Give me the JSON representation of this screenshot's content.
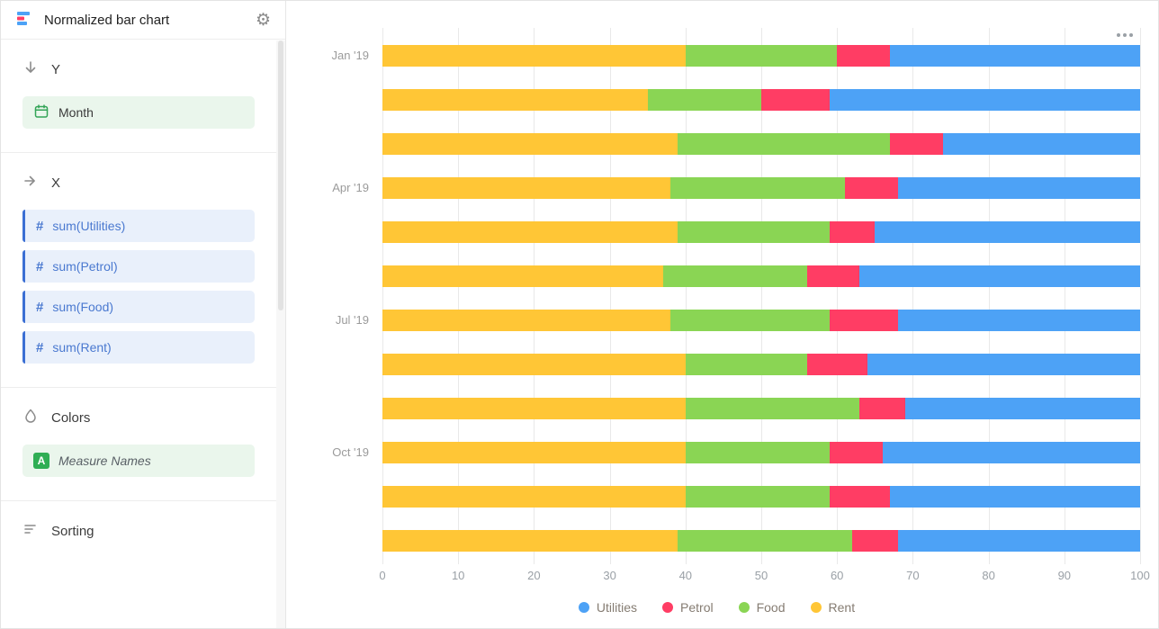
{
  "sidebar": {
    "title": "Normalized bar chart",
    "sections": {
      "y": {
        "label": "Y",
        "fields": [
          {
            "label": "Month"
          }
        ]
      },
      "x": {
        "label": "X",
        "fields": [
          {
            "label": "sum(Utilities)"
          },
          {
            "label": "sum(Petrol)"
          },
          {
            "label": "sum(Food)"
          },
          {
            "label": "sum(Rent)"
          }
        ]
      },
      "colors": {
        "label": "Colors",
        "fields": [
          {
            "label": "Measure Names"
          }
        ]
      },
      "sorting": {
        "label": "Sorting"
      }
    }
  },
  "palette": {
    "blue": "#4DA2F6",
    "red": "#FF3D64",
    "green": "#8AD554",
    "yellow": "#FFC636"
  },
  "chart_data": {
    "type": "bar",
    "orientation": "horizontal",
    "stacked": true,
    "normalized": true,
    "title": "",
    "xlabel": "",
    "ylabel": "",
    "xlim": [
      0,
      100
    ],
    "grid": true,
    "x_ticks": [
      0,
      10,
      20,
      30,
      40,
      50,
      60,
      70,
      80,
      90,
      100
    ],
    "categories": [
      "Jan '19",
      "",
      "",
      "Apr '19",
      "",
      "",
      "Jul '19",
      "",
      "",
      "Oct '19",
      "",
      ""
    ],
    "series": [
      {
        "name": "Rent",
        "color": "#FFC636",
        "values": [
          40,
          35,
          39,
          38,
          39,
          37,
          38,
          40,
          40,
          40,
          40,
          39
        ]
      },
      {
        "name": "Food",
        "color": "#8AD554",
        "values": [
          20,
          15,
          28,
          23,
          20,
          19,
          21,
          16,
          23,
          19,
          19,
          23
        ]
      },
      {
        "name": "Petrol",
        "color": "#FF3D64",
        "values": [
          7,
          9,
          7,
          7,
          6,
          7,
          9,
          8,
          6,
          7,
          8,
          6
        ]
      },
      {
        "name": "Utilities",
        "color": "#4DA2F6",
        "values": [
          33,
          41,
          26,
          32,
          35,
          37,
          32,
          36,
          31,
          34,
          33,
          32
        ]
      }
    ],
    "legend_position": "bottom",
    "legend": [
      {
        "label": "Utilities",
        "color": "#4DA2F6"
      },
      {
        "label": "Petrol",
        "color": "#FF3D64"
      },
      {
        "label": "Food",
        "color": "#8AD554"
      },
      {
        "label": "Rent",
        "color": "#FFC636"
      }
    ]
  }
}
